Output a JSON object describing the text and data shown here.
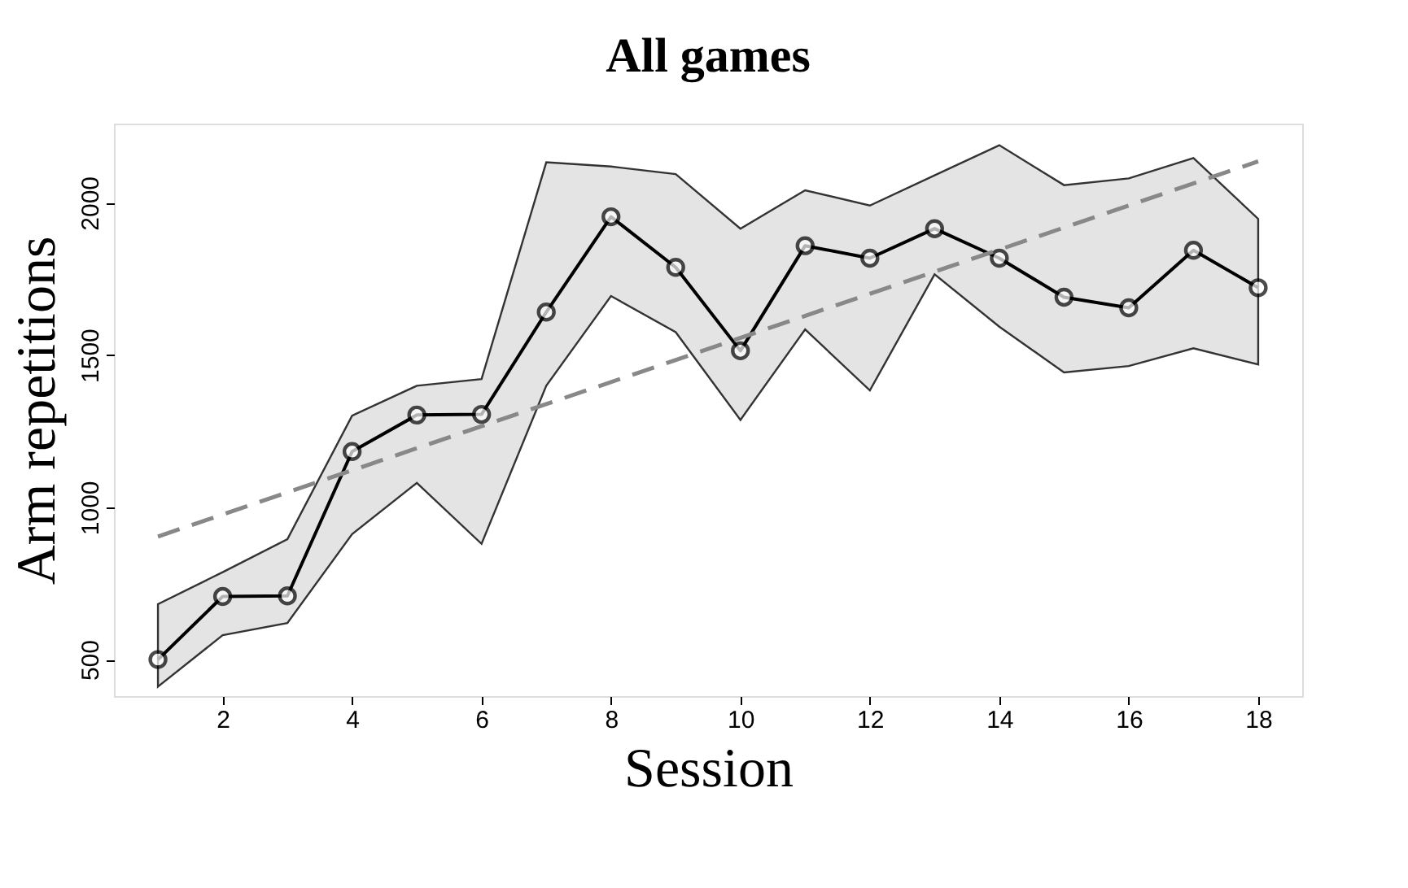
{
  "chart_data": {
    "type": "line",
    "title": "All games",
    "xlabel": "Session",
    "ylabel": "Arm repetitions",
    "xlim": [
      0.32,
      18.68
    ],
    "ylim": [
      380,
      2260
    ],
    "xticks": [
      2,
      4,
      6,
      8,
      10,
      12,
      14,
      16,
      18
    ],
    "yticks": [
      500,
      1000,
      1500,
      2000
    ],
    "grid": false,
    "series": [
      {
        "color": "#000000",
        "marker": "circle",
        "line_style": "solid",
        "x": [
          1,
          2,
          3,
          4,
          5,
          6,
          7,
          8,
          9,
          10,
          11,
          12,
          13,
          14,
          15,
          16,
          17,
          18
        ],
        "values": [
          500,
          707,
          709,
          1183,
          1303,
          1305,
          1641,
          1954,
          1788,
          1514,
          1859,
          1818,
          1915,
          1818,
          1690,
          1655,
          1844,
          1721
        ],
        "lower": [
          411,
          580,
          620,
          912,
          1080,
          880,
          1399,
          1694,
          1575,
          1287,
          1584,
          1384,
          1765,
          1593,
          1443,
          1464,
          1522,
          1469
        ],
        "upper": [
          682,
          787,
          895,
          1301,
          1399,
          1421,
          2133,
          2119,
          2094,
          1915,
          2041,
          1991,
          2090,
          2189,
          2058,
          2080,
          2147,
          1947
        ]
      },
      {
        "color": "#888888",
        "marker": "none",
        "line_style": "dashed",
        "x": [
          1,
          18
        ],
        "values": [
          904,
          2136
        ]
      }
    ]
  }
}
